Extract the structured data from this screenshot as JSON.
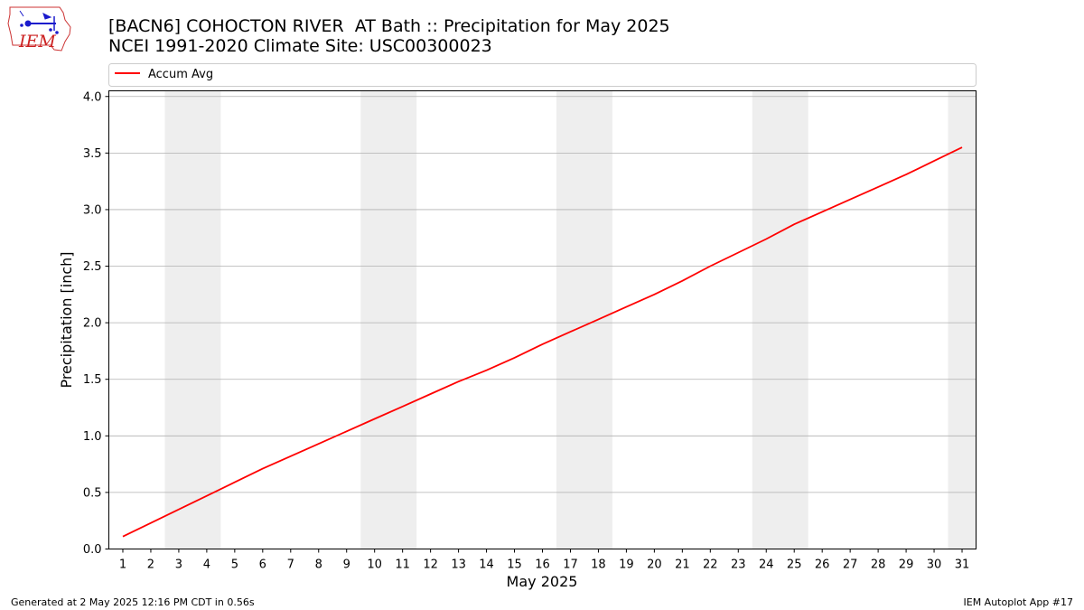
{
  "logo": {
    "text": "IEM"
  },
  "footer": {
    "left": "Generated at 2 May 2025 12:16 PM CDT in 0.56s",
    "right": "IEM Autoplot App #17"
  },
  "colors": {
    "line": "#ff0000",
    "weekend_band": "#eeeeee",
    "grid": "#b0b0b0"
  },
  "chart_data": {
    "type": "line",
    "title": "[BACN6] COHOCTON RIVER  AT Bath :: Precipitation for May 2025",
    "subtitle": "NCEI 1991-2020 Climate Site: USC00300023",
    "xlabel": "May 2025",
    "ylabel": "Precipitation [inch]",
    "xlim": [
      0.5,
      31.5
    ],
    "ylim": [
      0,
      4.05
    ],
    "yticks": [
      "0.0",
      "0.5",
      "1.0",
      "1.5",
      "2.0",
      "2.5",
      "3.0",
      "3.5",
      "4.0"
    ],
    "xticks": [
      "1",
      "2",
      "3",
      "4",
      "5",
      "6",
      "7",
      "8",
      "9",
      "10",
      "11",
      "12",
      "13",
      "14",
      "15",
      "16",
      "17",
      "18",
      "19",
      "20",
      "21",
      "22",
      "23",
      "24",
      "25",
      "26",
      "27",
      "28",
      "29",
      "30",
      "31"
    ],
    "grid": "horizontal",
    "legend": "top-left",
    "shaded_days": [
      [
        3,
        4
      ],
      [
        10,
        11
      ],
      [
        17,
        18
      ],
      [
        24,
        25
      ],
      [
        31,
        31
      ]
    ],
    "series": [
      {
        "name": "Accum Avg",
        "x": [
          1,
          2,
          3,
          4,
          5,
          6,
          7,
          8,
          9,
          10,
          11,
          12,
          13,
          14,
          15,
          16,
          17,
          18,
          19,
          20,
          21,
          22,
          23,
          24,
          25,
          26,
          27,
          28,
          29,
          30,
          31
        ],
        "values": [
          0.11,
          0.23,
          0.35,
          0.47,
          0.59,
          0.71,
          0.82,
          0.93,
          1.04,
          1.15,
          1.26,
          1.37,
          1.48,
          1.58,
          1.69,
          1.81,
          1.92,
          2.03,
          2.14,
          2.25,
          2.37,
          2.5,
          2.62,
          2.74,
          2.87,
          2.98,
          3.09,
          3.2,
          3.31,
          3.43,
          3.55
        ]
      }
    ]
  }
}
